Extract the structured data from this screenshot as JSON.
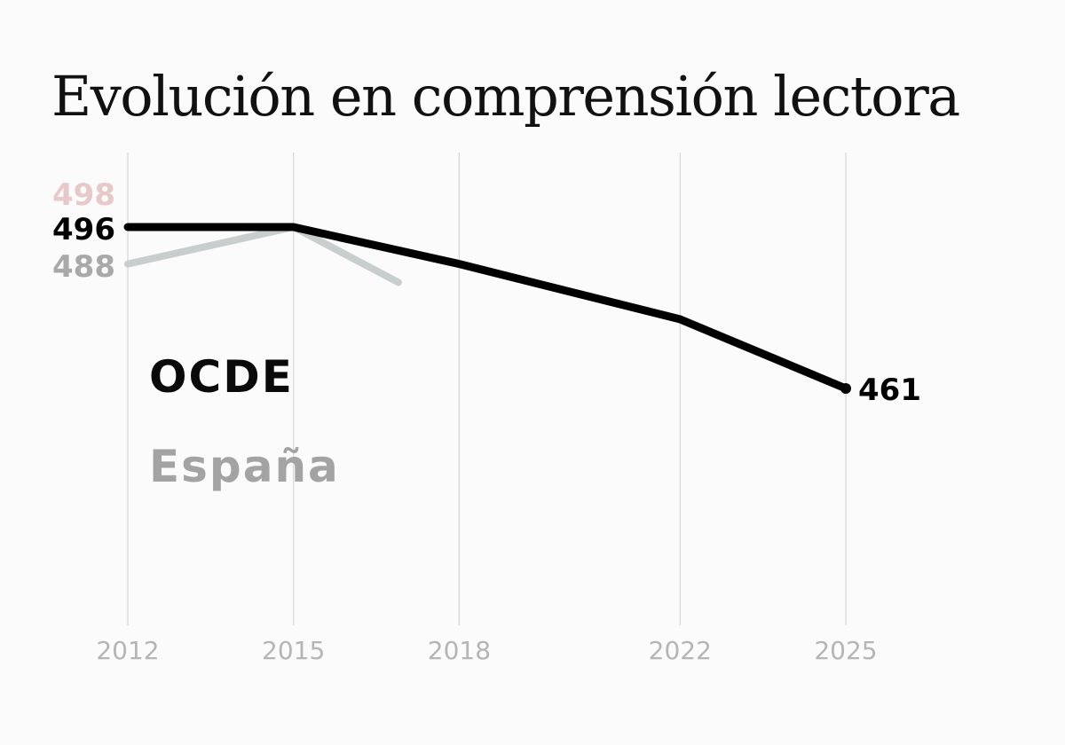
{
  "chart_data": {
    "type": "line",
    "title": "Evolución en comprensión lectora",
    "x_ticks": [
      "2012",
      "2015",
      "2018",
      "2022",
      "2025"
    ],
    "xlim": [
      2012,
      2025
    ],
    "ylim": [
      440,
      500
    ],
    "grid": "vertical",
    "series": [
      {
        "name": "OCDE",
        "color": "#000000",
        "x": [
          2012,
          2015,
          2018,
          2022,
          2025
        ],
        "y": [
          496,
          496,
          488,
          476,
          461
        ],
        "labels": [
          {
            "x": 2012,
            "text": "496"
          },
          {
            "x": 2025,
            "text": "461"
          }
        ]
      },
      {
        "name": "España",
        "color": "#c8cdcd",
        "x": [
          2012,
          2015,
          2016.9
        ],
        "y": [
          488,
          496,
          484
        ],
        "labels": [
          {
            "x": 2012,
            "text": "488"
          }
        ]
      }
    ],
    "annotations": [
      {
        "text": "498",
        "color": "#e7c9c9"
      }
    ],
    "legend": [
      {
        "text": "OCDE",
        "color": "#0a0a0a"
      },
      {
        "text": "España",
        "color": "#a3a3a3"
      }
    ]
  }
}
